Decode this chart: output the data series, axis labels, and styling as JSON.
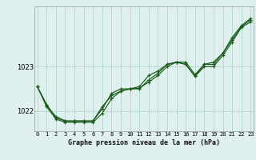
{
  "title": "Graphe pression niveau de la mer (hPa)",
  "background_color": "#dff0ee",
  "grid_color": "#b0d8d0",
  "line_color": "#1a5c1a",
  "x_ticks": [
    0,
    1,
    2,
    3,
    4,
    5,
    6,
    7,
    8,
    9,
    10,
    11,
    12,
    13,
    14,
    15,
    16,
    17,
    18,
    19,
    20,
    21,
    22,
    23
  ],
  "y_ticks": [
    1022,
    1023
  ],
  "ylim": [
    1021.55,
    1024.35
  ],
  "xlim": [
    -0.3,
    23.3
  ],
  "series": [
    [
      1022.55,
      1022.15,
      1021.85,
      1021.78,
      1021.78,
      1021.78,
      1021.78,
      1022.1,
      1022.35,
      1022.45,
      1022.5,
      1022.5,
      1022.7,
      1022.85,
      1023.05,
      1023.1,
      1023.05,
      1022.78,
      1023.05,
      1023.05,
      1023.3,
      1023.6,
      1023.9,
      1024.05
    ],
    [
      1022.55,
      1022.1,
      1021.82,
      1021.75,
      1021.75,
      1021.75,
      1021.75,
      1021.95,
      1022.28,
      1022.45,
      1022.5,
      1022.55,
      1022.8,
      1022.9,
      1023.05,
      1023.1,
      1023.1,
      1022.82,
      1023.05,
      1023.1,
      1023.3,
      1023.65,
      1023.92,
      1024.08
    ],
    [
      1022.55,
      1022.12,
      1021.88,
      1021.78,
      1021.78,
      1021.78,
      1021.78,
      1022.05,
      1022.4,
      1022.5,
      1022.5,
      1022.52,
      1022.65,
      1022.8,
      1023.0,
      1023.1,
      1023.05,
      1022.78,
      1023.0,
      1023.0,
      1023.25,
      1023.55,
      1023.88,
      1024.0
    ]
  ],
  "title_fontsize": 6,
  "ytick_fontsize": 6,
  "xtick_fontsize": 5
}
